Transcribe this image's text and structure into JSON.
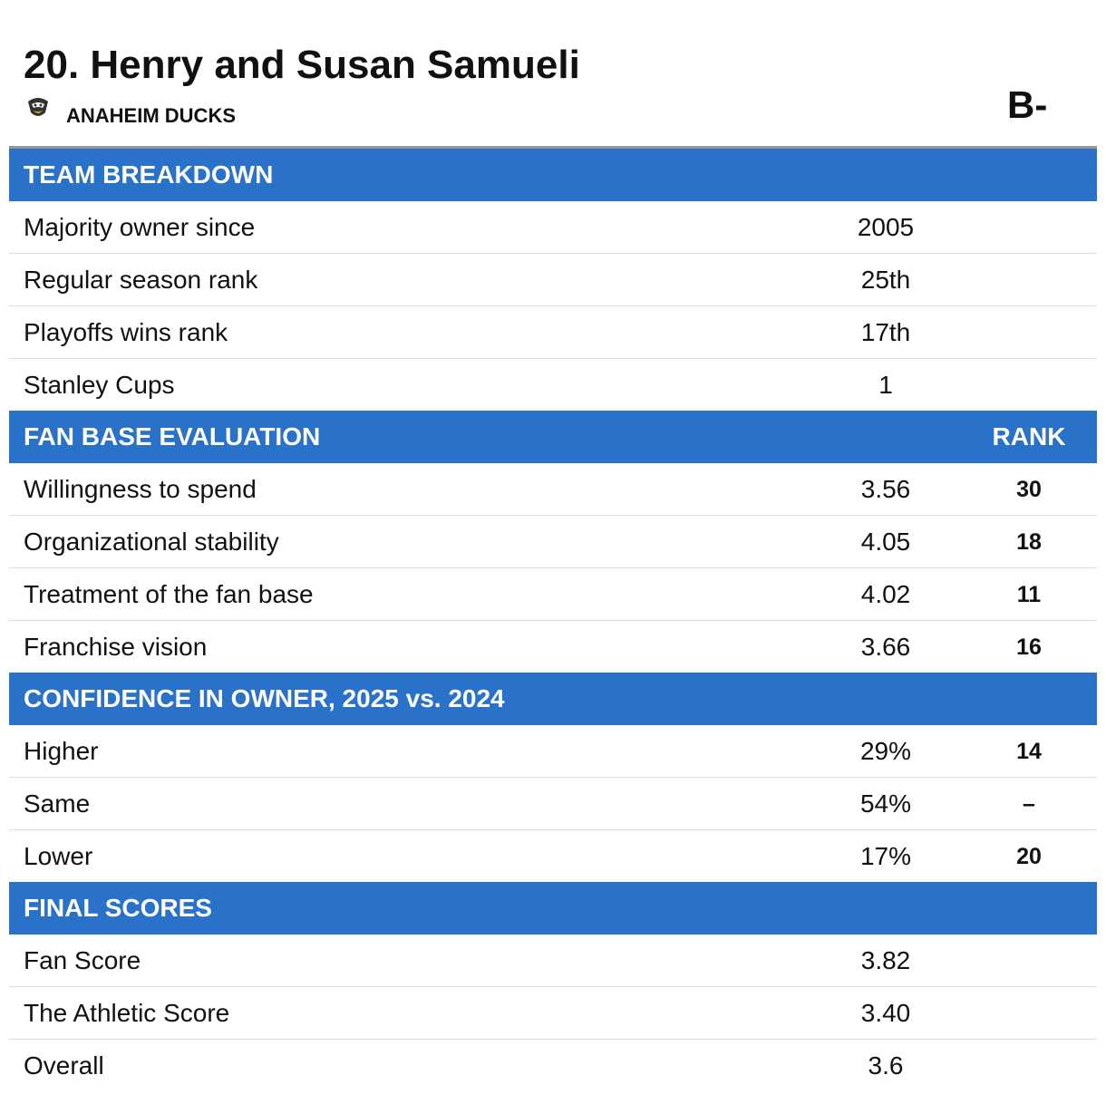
{
  "header": {
    "title": "20. Henry and Susan Samueli",
    "team": "ANAHEIM DUCKS",
    "grade": "B-"
  },
  "sections": [
    {
      "title": "TEAM BREAKDOWN",
      "rows": [
        {
          "label": "Majority owner since",
          "value": "2005"
        },
        {
          "label": "Regular season rank",
          "value": "25th"
        },
        {
          "label": "Playoffs wins rank",
          "value": "17th"
        },
        {
          "label": "Stanley Cups",
          "value": "1"
        }
      ]
    },
    {
      "title": "FAN BASE EVALUATION",
      "rank_header": "RANK",
      "rows": [
        {
          "label": "Willingness to spend",
          "value": "3.56",
          "rank": "30"
        },
        {
          "label": "Organizational stability",
          "value": "4.05",
          "rank": "18"
        },
        {
          "label": "Treatment of the fan base",
          "value": "4.02",
          "rank": "11"
        },
        {
          "label": "Franchise vision",
          "value": "3.66",
          "rank": "16"
        }
      ]
    },
    {
      "title": "CONFIDENCE IN OWNER, 2025 vs. 2024",
      "rows": [
        {
          "label": "Higher",
          "value": "29%",
          "rank": "14"
        },
        {
          "label": "Same",
          "value": "54%",
          "rank": "–"
        },
        {
          "label": "Lower",
          "value": "17%",
          "rank": "20"
        }
      ]
    },
    {
      "title": "FINAL SCORES",
      "rows": [
        {
          "label": "Fan Score",
          "value": "3.82"
        },
        {
          "label": "The Athletic Score",
          "value": "3.40"
        },
        {
          "label": "Overall",
          "value": "3.6"
        }
      ]
    }
  ]
}
